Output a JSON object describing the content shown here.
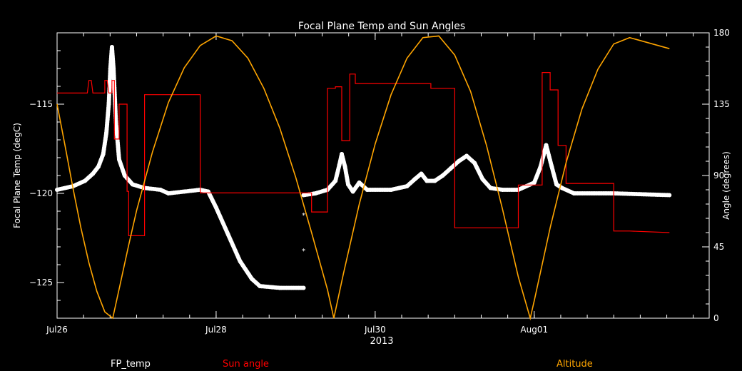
{
  "chart_data": {
    "type": "line",
    "title": "Focal Plane Temp and Sun Angles",
    "xlabel": "2013",
    "ylabel_left": "Focal Plane Temp (degC)",
    "ylabel_right": "Angle (degrees)",
    "x_unit": "days since Jul26 00:00, 2013",
    "xlim": [
      0,
      8.2
    ],
    "xticks": [
      {
        "x": 0,
        "label": "Jul26"
      },
      {
        "x": 2,
        "label": "Jul28"
      },
      {
        "x": 4,
        "label": "Jul30"
      },
      {
        "x": 6,
        "label": "Aug01"
      }
    ],
    "ylim_left": [
      -127,
      -111
    ],
    "yticks_left": [
      -115,
      -120,
      -125
    ],
    "ylim_right": [
      0,
      180
    ],
    "yticks_right": [
      0,
      45,
      90,
      135,
      180
    ],
    "grid": false,
    "legend": [
      {
        "name": "FP_temp",
        "color": "#ffffff"
      },
      {
        "name": "Sun angle",
        "color": "#ff0000"
      },
      {
        "name": "Altitude",
        "color": "#ffa500"
      }
    ],
    "series": [
      {
        "name": "FP_temp",
        "axis": "left",
        "color": "#ffffff",
        "points": [
          [
            0.0,
            -119.8
          ],
          [
            0.2,
            -119.6
          ],
          [
            0.35,
            -119.3
          ],
          [
            0.45,
            -118.9
          ],
          [
            0.52,
            -118.5
          ],
          [
            0.58,
            -117.8
          ],
          [
            0.62,
            -116.6
          ],
          [
            0.65,
            -115.0
          ],
          [
            0.67,
            -113.0
          ],
          [
            0.69,
            -111.8
          ],
          [
            0.71,
            -113.0
          ],
          [
            0.74,
            -116.0
          ],
          [
            0.78,
            -118.1
          ],
          [
            0.85,
            -119.0
          ],
          [
            0.95,
            -119.5
          ],
          [
            1.1,
            -119.7
          ],
          [
            1.3,
            -119.8
          ],
          [
            1.4,
            -120.0
          ],
          [
            1.6,
            -119.9
          ],
          [
            1.8,
            -119.8
          ],
          [
            1.9,
            -119.9
          ],
          [
            2.0,
            -120.8
          ],
          [
            2.15,
            -122.3
          ],
          [
            2.3,
            -123.8
          ],
          [
            2.45,
            -124.8
          ],
          [
            2.55,
            -125.2
          ],
          [
            2.8,
            -125.3
          ],
          [
            3.1,
            -125.3
          ],
          [
            3.1,
            -120.1
          ],
          [
            3.25,
            -120.0
          ],
          [
            3.4,
            -119.8
          ],
          [
            3.5,
            -119.3
          ],
          [
            3.55,
            -118.4
          ],
          [
            3.58,
            -117.8
          ],
          [
            3.62,
            -118.5
          ],
          [
            3.66,
            -119.5
          ],
          [
            3.72,
            -119.9
          ],
          [
            3.8,
            -119.4
          ],
          [
            3.9,
            -119.8
          ],
          [
            4.2,
            -119.8
          ],
          [
            4.4,
            -119.6
          ],
          [
            4.5,
            -119.2
          ],
          [
            4.58,
            -118.9
          ],
          [
            4.65,
            -119.3
          ],
          [
            4.75,
            -119.3
          ],
          [
            4.85,
            -119.0
          ],
          [
            4.95,
            -118.6
          ],
          [
            5.05,
            -118.2
          ],
          [
            5.15,
            -117.9
          ],
          [
            5.25,
            -118.3
          ],
          [
            5.35,
            -119.2
          ],
          [
            5.45,
            -119.7
          ],
          [
            5.6,
            -119.8
          ],
          [
            5.8,
            -119.8
          ],
          [
            5.9,
            -119.6
          ],
          [
            6.0,
            -119.4
          ],
          [
            6.08,
            -118.5
          ],
          [
            6.15,
            -117.3
          ],
          [
            6.22,
            -118.5
          ],
          [
            6.28,
            -119.5
          ],
          [
            6.35,
            -119.7
          ],
          [
            6.5,
            -120.0
          ],
          [
            7.0,
            -120.0
          ],
          [
            7.7,
            -120.1
          ]
        ]
      },
      {
        "name": "FP_temp_isolated",
        "axis": "left",
        "color": "#ffffff",
        "points": [
          [
            3.1,
            -121.2
          ],
          [
            3.1,
            -123.2
          ]
        ]
      },
      {
        "name": "Sun angle",
        "axis": "right",
        "color": "#ff0000",
        "points": [
          [
            0.0,
            142
          ],
          [
            0.38,
            142
          ],
          [
            0.4,
            150
          ],
          [
            0.43,
            150
          ],
          [
            0.45,
            142
          ],
          [
            0.6,
            142
          ],
          [
            0.6,
            150
          ],
          [
            0.63,
            150
          ],
          [
            0.65,
            142
          ],
          [
            0.69,
            142
          ],
          [
            0.69,
            150
          ],
          [
            0.72,
            150
          ],
          [
            0.72,
            113
          ],
          [
            0.78,
            113
          ],
          [
            0.78,
            135
          ],
          [
            0.88,
            135
          ],
          [
            0.88,
            80
          ],
          [
            0.9,
            80
          ],
          [
            0.9,
            52
          ],
          [
            1.1,
            52
          ],
          [
            1.1,
            141
          ],
          [
            1.8,
            141
          ],
          [
            1.8,
            79
          ],
          [
            2.6,
            79
          ],
          [
            3.2,
            79
          ],
          [
            3.2,
            67
          ],
          [
            3.4,
            67
          ],
          [
            3.4,
            145
          ],
          [
            3.5,
            145
          ],
          [
            3.5,
            146
          ],
          [
            3.58,
            146
          ],
          [
            3.58,
            112
          ],
          [
            3.68,
            112
          ],
          [
            3.68,
            154
          ],
          [
            3.75,
            154
          ],
          [
            3.75,
            148
          ],
          [
            4.3,
            148
          ],
          [
            4.7,
            148
          ],
          [
            4.7,
            145
          ],
          [
            5.0,
            145
          ],
          [
            5.0,
            57
          ],
          [
            5.8,
            57
          ],
          [
            5.8,
            84
          ],
          [
            6.1,
            84
          ],
          [
            6.1,
            155
          ],
          [
            6.2,
            155
          ],
          [
            6.2,
            144
          ],
          [
            6.3,
            144
          ],
          [
            6.3,
            109
          ],
          [
            6.4,
            109
          ],
          [
            6.4,
            85
          ],
          [
            7.0,
            85
          ],
          [
            7.0,
            55
          ],
          [
            7.2,
            55
          ],
          [
            7.7,
            54
          ]
        ]
      },
      {
        "name": "Altitude",
        "axis": "right",
        "color": "#ffa500",
        "points": [
          [
            0.0,
            135
          ],
          [
            0.1,
            109
          ],
          [
            0.2,
            82
          ],
          [
            0.3,
            57
          ],
          [
            0.4,
            35
          ],
          [
            0.5,
            17
          ],
          [
            0.6,
            4
          ],
          [
            0.7,
            0
          ],
          [
            0.8,
            23
          ],
          [
            0.9,
            46
          ],
          [
            1.0,
            68
          ],
          [
            1.2,
            105
          ],
          [
            1.4,
            136
          ],
          [
            1.6,
            158
          ],
          [
            1.8,
            172
          ],
          [
            2.0,
            178
          ],
          [
            2.2,
            175
          ],
          [
            2.4,
            164
          ],
          [
            2.6,
            145
          ],
          [
            2.8,
            120
          ],
          [
            3.0,
            89
          ],
          [
            3.2,
            54
          ],
          [
            3.4,
            18
          ],
          [
            3.48,
            0
          ],
          [
            3.6,
            28
          ],
          [
            3.8,
            72
          ],
          [
            4.0,
            110
          ],
          [
            4.2,
            141
          ],
          [
            4.4,
            164
          ],
          [
            4.6,
            177
          ],
          [
            4.8,
            178
          ],
          [
            5.0,
            166
          ],
          [
            5.2,
            143
          ],
          [
            5.4,
            109
          ],
          [
            5.6,
            69
          ],
          [
            5.8,
            26
          ],
          [
            5.95,
            0
          ],
          [
            6.0,
            11
          ],
          [
            6.2,
            57
          ],
          [
            6.4,
            98
          ],
          [
            6.6,
            132
          ],
          [
            6.8,
            157
          ],
          [
            7.0,
            173
          ],
          [
            7.2,
            177
          ],
          [
            7.7,
            170
          ]
        ]
      }
    ]
  }
}
